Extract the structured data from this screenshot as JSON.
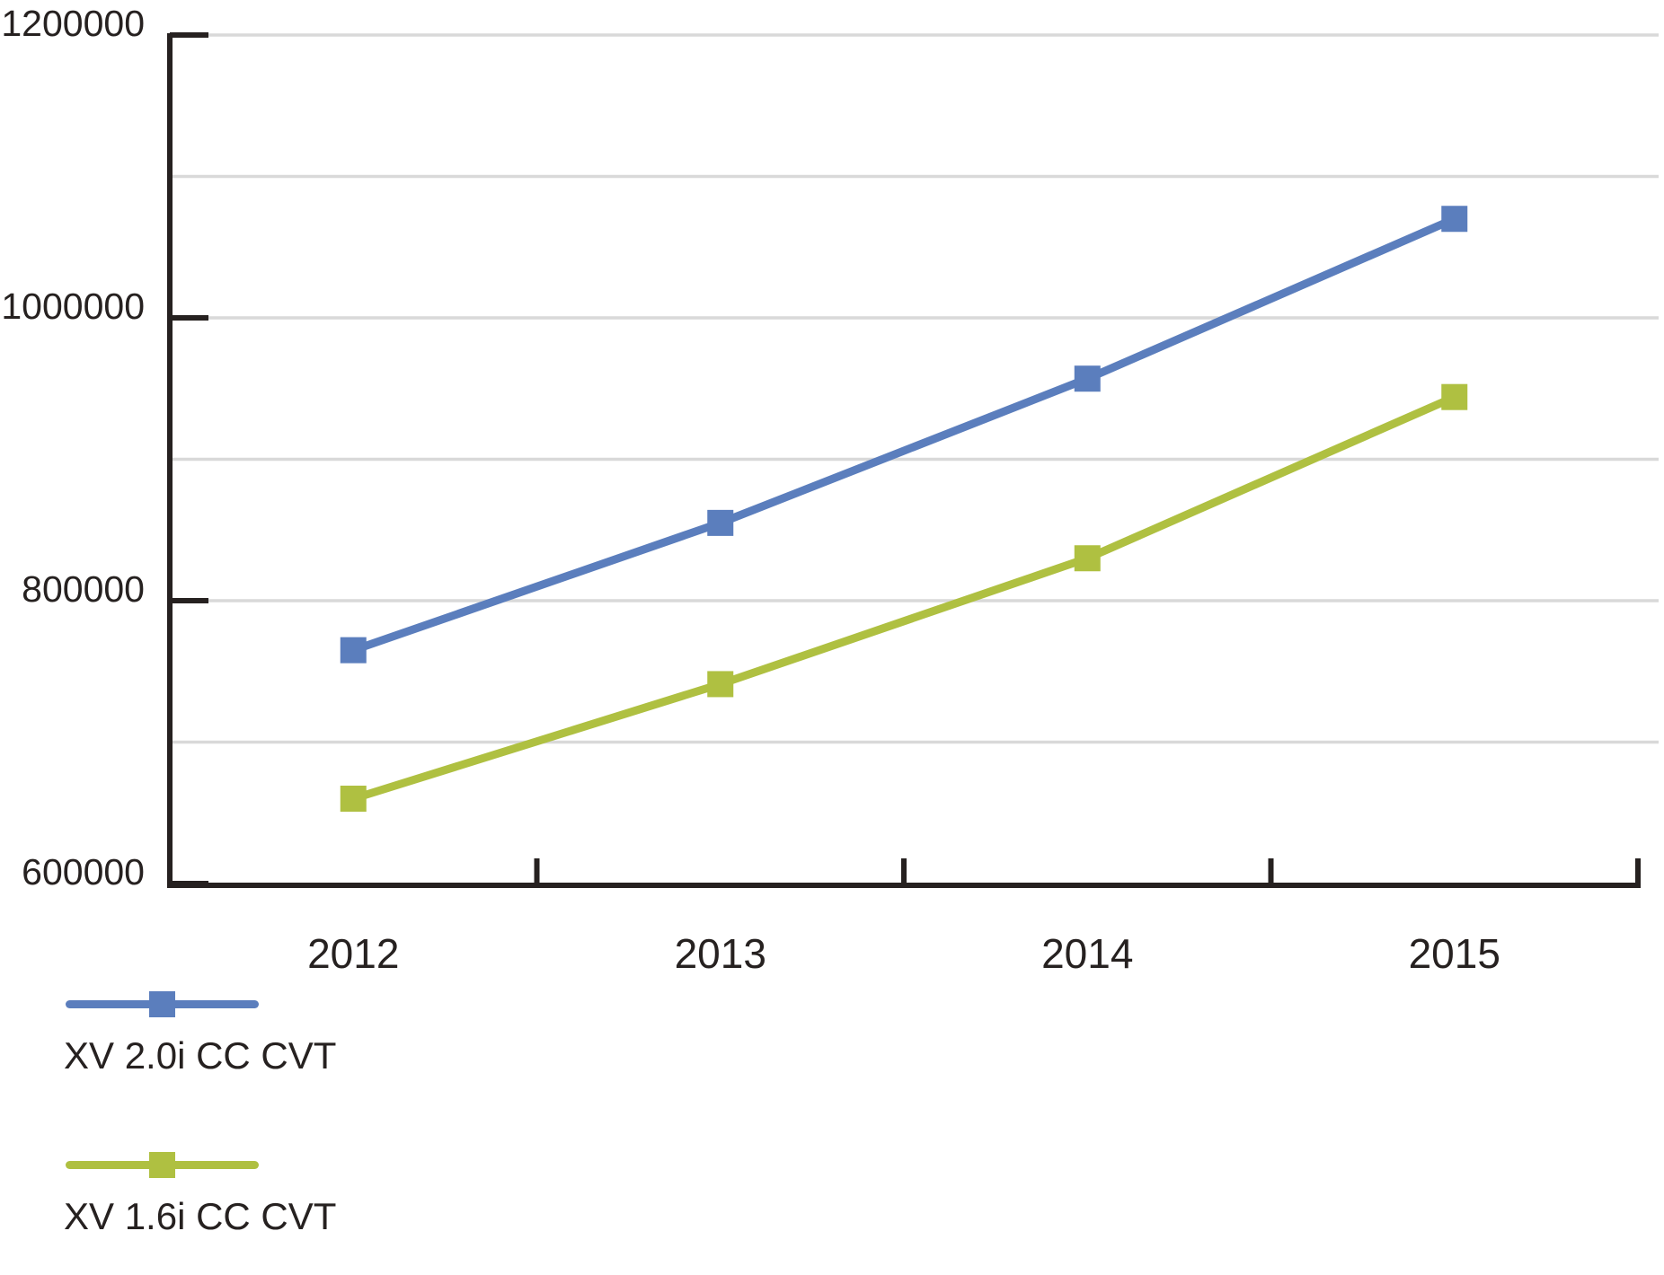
{
  "chart_data": {
    "type": "line",
    "title": "",
    "xlabel": "",
    "ylabel": "",
    "categories": [
      "2012",
      "2013",
      "2014",
      "2015"
    ],
    "series": [
      {
        "name": "XV 2.0i CC CVT",
        "color": "#5B7EBD",
        "values": [
          765000,
          855000,
          957000,
          1070000
        ]
      },
      {
        "name": "XV 1.6i CC CVT",
        "color": "#AFC041",
        "values": [
          660000,
          741000,
          830000,
          944000
        ]
      }
    ],
    "ylim": [
      600000,
      1200000
    ],
    "yticks": [
      600000,
      800000,
      1000000,
      1200000
    ],
    "ytick_labels": [
      "600000",
      "800000",
      "1000000",
      "1200000"
    ],
    "grid": true,
    "grid_interval": 100000,
    "legend_position": "bottom-left",
    "marker": "square",
    "colors": {
      "axis": "#262120",
      "grid": "#D9D9D9",
      "background": "#FFFFFF"
    }
  }
}
